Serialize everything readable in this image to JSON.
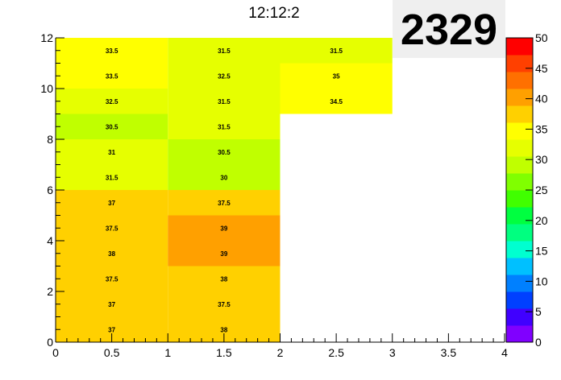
{
  "title": "12:12:2",
  "stamp": "2329",
  "chart_data": {
    "type": "heatmap",
    "title": "12:12:2",
    "x_bin_edges": [
      0,
      1,
      2,
      3,
      4
    ],
    "y_bin_edges": [
      0,
      1,
      2,
      3,
      4,
      5,
      6,
      7,
      8,
      9,
      10,
      11,
      12
    ],
    "xlim": [
      0,
      4
    ],
    "ylim": [
      0,
      12
    ],
    "x_tick_labels": [
      "0",
      "0.5",
      "1",
      "1.5",
      "2",
      "2.5",
      "3",
      "3.5",
      "4"
    ],
    "y_tick_labels": [
      "0",
      "2",
      "4",
      "6",
      "8",
      "10",
      "12"
    ],
    "z_range": [
      0,
      50
    ],
    "color_scale_labels": [
      "0",
      "5",
      "10",
      "15",
      "20",
      "25",
      "30",
      "35",
      "40",
      "45",
      "50"
    ],
    "palette": [
      "#8000ff",
      "#4000ff",
      "#0040ff",
      "#0080ff",
      "#00c0ff",
      "#00ffd0",
      "#00ff80",
      "#00ff40",
      "#40ff00",
      "#80ff00",
      "#c0ff00",
      "#e6ff00",
      "#ffff00",
      "#ffd000",
      "#ffa000",
      "#ff7000",
      "#ff4000",
      "#ff0000"
    ],
    "cells": [
      {
        "x": 0,
        "y": 0,
        "value": 37
      },
      {
        "x": 1,
        "y": 0,
        "value": 38
      },
      {
        "x": 0,
        "y": 1,
        "value": 37
      },
      {
        "x": 1,
        "y": 1,
        "value": 37.5
      },
      {
        "x": 0,
        "y": 2,
        "value": 37.5
      },
      {
        "x": 1,
        "y": 2,
        "value": 38
      },
      {
        "x": 0,
        "y": 3,
        "value": 38
      },
      {
        "x": 1,
        "y": 3,
        "value": 39
      },
      {
        "x": 0,
        "y": 4,
        "value": 37.5
      },
      {
        "x": 1,
        "y": 4,
        "value": 39
      },
      {
        "x": 0,
        "y": 5,
        "value": 37
      },
      {
        "x": 1,
        "y": 5,
        "value": 37.5
      },
      {
        "x": 0,
        "y": 6,
        "value": 31.5
      },
      {
        "x": 1,
        "y": 6,
        "value": 30
      },
      {
        "x": 0,
        "y": 7,
        "value": 31
      },
      {
        "x": 1,
        "y": 7,
        "value": 30.5
      },
      {
        "x": 0,
        "y": 8,
        "value": 30.5
      },
      {
        "x": 1,
        "y": 8,
        "value": 31.5
      },
      {
        "x": 0,
        "y": 9,
        "value": 32.5
      },
      {
        "x": 1,
        "y": 9,
        "value": 31.5
      },
      {
        "x": 2,
        "y": 9,
        "value": 34.5
      },
      {
        "x": 0,
        "y": 10,
        "value": 33.5
      },
      {
        "x": 1,
        "y": 10,
        "value": 32.5
      },
      {
        "x": 2,
        "y": 10,
        "value": 35
      },
      {
        "x": 0,
        "y": 11,
        "value": 33.5
      },
      {
        "x": 1,
        "y": 11,
        "value": 31.5
      },
      {
        "x": 2,
        "y": 11,
        "value": 31.5
      }
    ]
  }
}
